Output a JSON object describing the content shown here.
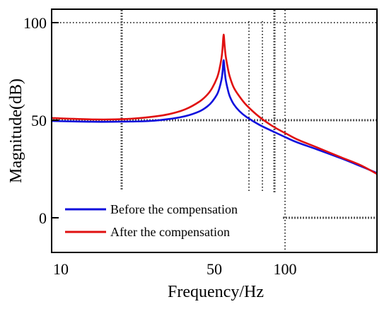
{
  "chart_data": {
    "type": "line",
    "xlabel": "Frequency/Hz",
    "ylabel": "Magnitude(dB)",
    "xscale": "log",
    "xlim": [
      10,
      210
    ],
    "ylim": [
      -17,
      107
    ],
    "x_ticks": [
      {
        "value": 10,
        "label": "10"
      },
      {
        "value": 50,
        "label": "50"
      },
      {
        "value": 100,
        "label": "100"
      }
    ],
    "y_ticks": [
      {
        "value": 0,
        "label": "0"
      },
      {
        "value": 50,
        "label": "50"
      },
      {
        "value": 100,
        "label": "100"
      }
    ],
    "grid": "dotted",
    "legend_position": "bottom-left",
    "series": [
      {
        "name": "Before the compensation",
        "color": "#1010dd",
        "x": [
          10,
          15,
          20,
          25,
          30,
          35,
          40,
          43,
          45,
          47,
          48,
          49,
          49.5,
          50,
          50.5,
          51,
          52,
          53,
          55,
          58,
          62,
          70,
          80,
          90,
          100,
          120,
          150,
          180,
          210
        ],
        "y": [
          50.0,
          49.6,
          49.7,
          50.0,
          51.0,
          52.5,
          55.0,
          57.5,
          60.0,
          63.5,
          66.5,
          71.0,
          75.0,
          81.0,
          75.5,
          71.0,
          66.0,
          62.5,
          58.5,
          55.0,
          52.0,
          48.0,
          44.5,
          41.5,
          39.0,
          35.5,
          31.0,
          27.0,
          23.5
        ]
      },
      {
        "name": "After the compensation",
        "color": "#e01010",
        "x": [
          10,
          15,
          20,
          25,
          30,
          35,
          40,
          43,
          45,
          47,
          48,
          49,
          49.5,
          50,
          50.5,
          51,
          52,
          53,
          55,
          58,
          62,
          70,
          80,
          90,
          100,
          120,
          150,
          180,
          210
        ],
        "y": [
          51.5,
          50.8,
          51.0,
          52.0,
          53.5,
          56.0,
          60.0,
          63.5,
          67.0,
          72.0,
          76.0,
          82.0,
          87.0,
          94.0,
          88.0,
          83.0,
          77.0,
          72.5,
          67.0,
          62.5,
          58.0,
          52.0,
          47.0,
          43.5,
          40.5,
          36.5,
          31.5,
          27.5,
          23.0
        ]
      }
    ]
  }
}
